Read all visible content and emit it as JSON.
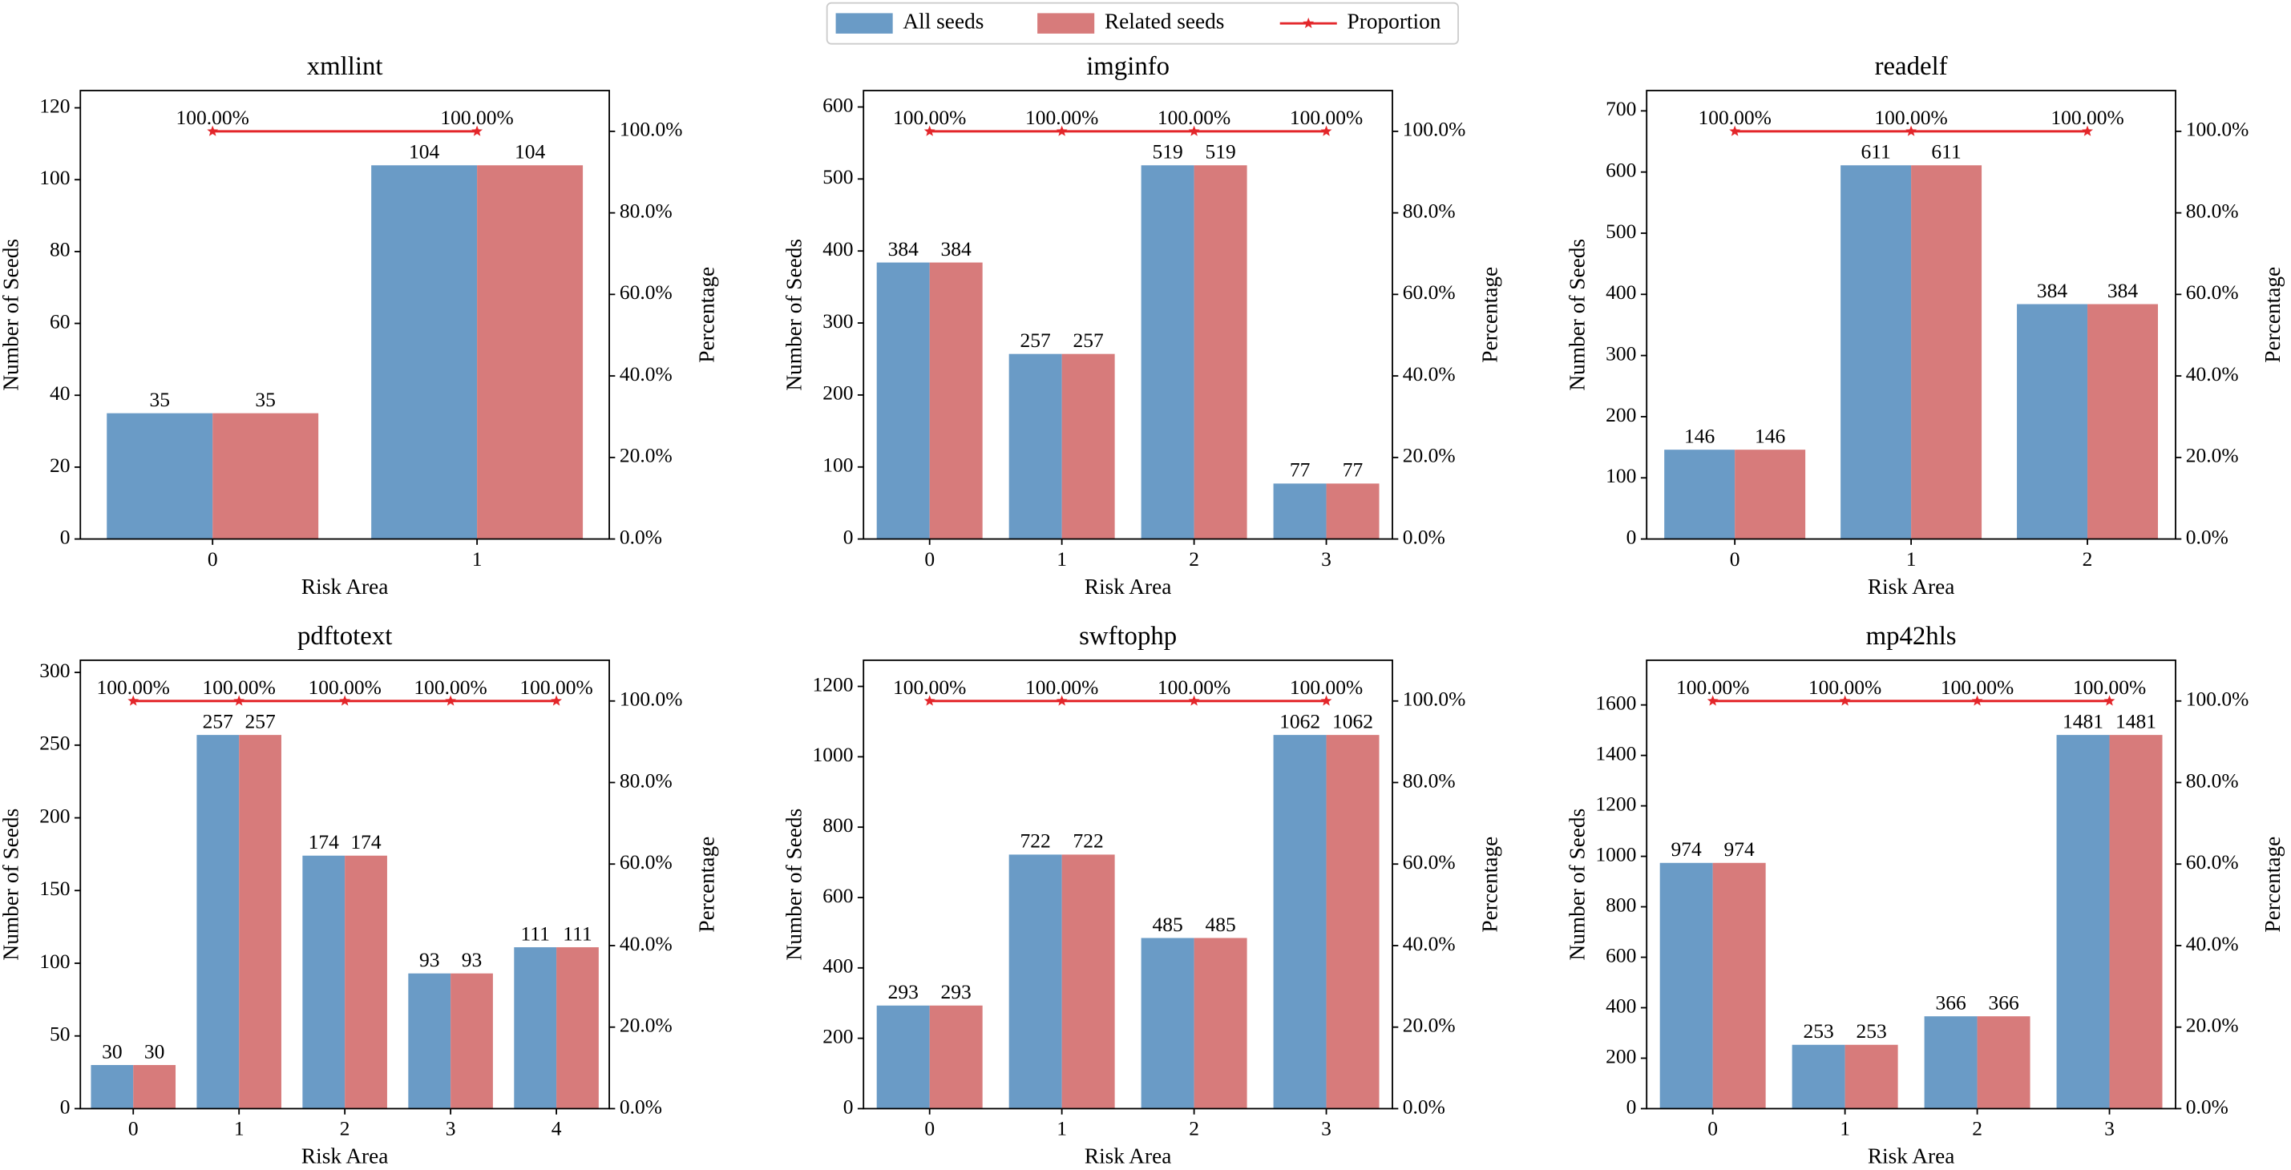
{
  "chart_data": [
    {
      "type": "bar",
      "title": "xmllint",
      "x_label": "Risk Area",
      "y_label": "Number of Seeds",
      "y2_label": "Percentage",
      "legend": "upper center",
      "categories": [
        "0",
        "1"
      ],
      "series": [
        {
          "name": "All seeds",
          "color": "#6a9bc6",
          "values": [
            35,
            104
          ]
        },
        {
          "name": "Related seeds",
          "color": "#d77b7b",
          "values": [
            35,
            104
          ]
        },
        {
          "name": "Proportion",
          "color": "#e3262a",
          "type": "line",
          "axis": "y2",
          "values": [
            100,
            100
          ],
          "value_labels": [
            "100.00%",
            "100.00%"
          ]
        }
      ],
      "ylim": [
        0,
        124.8
      ],
      "yticks": [
        0,
        20,
        40,
        60,
        80,
        100,
        120
      ],
      "y2lim": [
        0,
        110
      ],
      "y2ticks": [
        {
          "value": 0,
          "label": "0.0%"
        },
        {
          "value": 20,
          "label": "20.0%"
        },
        {
          "value": 40,
          "label": "40.0%"
        },
        {
          "value": 60,
          "label": "60.0%"
        },
        {
          "value": 80,
          "label": "80.0%"
        },
        {
          "value": 100,
          "label": "100.0%"
        }
      ]
    },
    {
      "type": "bar",
      "title": "imginfo",
      "x_label": "Risk Area",
      "y_label": "Number of Seeds",
      "y2_label": "Percentage",
      "categories": [
        "0",
        "1",
        "2",
        "3"
      ],
      "series": [
        {
          "name": "All seeds",
          "color": "#6a9bc6",
          "values": [
            384,
            257,
            519,
            77
          ]
        },
        {
          "name": "Related seeds",
          "color": "#d77b7b",
          "values": [
            384,
            257,
            519,
            77
          ]
        },
        {
          "name": "Proportion",
          "color": "#e3262a",
          "type": "line",
          "axis": "y2",
          "values": [
            100,
            100,
            100,
            100
          ],
          "value_labels": [
            "100.00%",
            "100.00%",
            "100.00%",
            "100.00%"
          ]
        }
      ],
      "ylim": [
        0,
        622.8
      ],
      "yticks": [
        0,
        100,
        200,
        300,
        400,
        500,
        600
      ],
      "y2lim": [
        0,
        110
      ],
      "y2ticks": [
        {
          "value": 0,
          "label": "0.0%"
        },
        {
          "value": 20,
          "label": "20.0%"
        },
        {
          "value": 40,
          "label": "40.0%"
        },
        {
          "value": 60,
          "label": "60.0%"
        },
        {
          "value": 80,
          "label": "80.0%"
        },
        {
          "value": 100,
          "label": "100.0%"
        }
      ]
    },
    {
      "type": "bar",
      "title": "readelf",
      "x_label": "Risk Area",
      "y_label": "Number of Seeds",
      "y2_label": "Percentage",
      "categories": [
        "0",
        "1",
        "2"
      ],
      "series": [
        {
          "name": "All seeds",
          "color": "#6a9bc6",
          "values": [
            146,
            611,
            384
          ]
        },
        {
          "name": "Related seeds",
          "color": "#d77b7b",
          "values": [
            146,
            611,
            384
          ]
        },
        {
          "name": "Proportion",
          "color": "#e3262a",
          "type": "line",
          "axis": "y2",
          "values": [
            100,
            100,
            100
          ],
          "value_labels": [
            "100.00%",
            "100.00%",
            "100.00%"
          ]
        }
      ],
      "ylim": [
        0,
        733.2
      ],
      "yticks": [
        0,
        100,
        200,
        300,
        400,
        500,
        600,
        700
      ],
      "y2lim": [
        0,
        110
      ],
      "y2ticks": [
        {
          "value": 0,
          "label": "0.0%"
        },
        {
          "value": 20,
          "label": "20.0%"
        },
        {
          "value": 40,
          "label": "40.0%"
        },
        {
          "value": 60,
          "label": "60.0%"
        },
        {
          "value": 80,
          "label": "80.0%"
        },
        {
          "value": 100,
          "label": "100.0%"
        }
      ]
    },
    {
      "type": "bar",
      "title": "pdftotext",
      "x_label": "Risk Area",
      "y_label": "Number of Seeds",
      "y2_label": "Percentage",
      "categories": [
        "0",
        "1",
        "2",
        "3",
        "4"
      ],
      "series": [
        {
          "name": "All seeds",
          "color": "#6a9bc6",
          "values": [
            30,
            257,
            174,
            93,
            111
          ]
        },
        {
          "name": "Related seeds",
          "color": "#d77b7b",
          "values": [
            30,
            257,
            174,
            93,
            111
          ]
        },
        {
          "name": "Proportion",
          "color": "#e3262a",
          "type": "line",
          "axis": "y2",
          "values": [
            100,
            100,
            100,
            100,
            100
          ],
          "value_labels": [
            "100.00%",
            "100.00%",
            "100.00%",
            "100.00%",
            "100.00%"
          ]
        }
      ],
      "ylim": [
        0,
        308.4
      ],
      "yticks": [
        0,
        50,
        100,
        150,
        200,
        250,
        300
      ],
      "y2lim": [
        0,
        110
      ],
      "y2ticks": [
        {
          "value": 0,
          "label": "0.0%"
        },
        {
          "value": 20,
          "label": "20.0%"
        },
        {
          "value": 40,
          "label": "40.0%"
        },
        {
          "value": 60,
          "label": "60.0%"
        },
        {
          "value": 80,
          "label": "80.0%"
        },
        {
          "value": 100,
          "label": "100.0%"
        }
      ]
    },
    {
      "type": "bar",
      "title": "swftophp",
      "x_label": "Risk Area",
      "y_label": "Number of Seeds",
      "y2_label": "Percentage",
      "categories": [
        "0",
        "1",
        "2",
        "3"
      ],
      "series": [
        {
          "name": "All seeds",
          "color": "#6a9bc6",
          "values": [
            293,
            722,
            485,
            1062
          ]
        },
        {
          "name": "Related seeds",
          "color": "#d77b7b",
          "values": [
            293,
            722,
            485,
            1062
          ]
        },
        {
          "name": "Proportion",
          "color": "#e3262a",
          "type": "line",
          "axis": "y2",
          "values": [
            100,
            100,
            100,
            100
          ],
          "value_labels": [
            "100.00%",
            "100.00%",
            "100.00%",
            "100.00%"
          ]
        }
      ],
      "ylim": [
        0,
        1274.4
      ],
      "yticks": [
        0,
        200,
        400,
        600,
        800,
        1000,
        1200
      ],
      "y2lim": [
        0,
        110
      ],
      "y2ticks": [
        {
          "value": 0,
          "label": "0.0%"
        },
        {
          "value": 20,
          "label": "20.0%"
        },
        {
          "value": 40,
          "label": "40.0%"
        },
        {
          "value": 60,
          "label": "60.0%"
        },
        {
          "value": 80,
          "label": "80.0%"
        },
        {
          "value": 100,
          "label": "100.0%"
        }
      ]
    },
    {
      "type": "bar",
      "title": "mp42hls",
      "x_label": "Risk Area",
      "y_label": "Number of Seeds",
      "y2_label": "Percentage",
      "categories": [
        "0",
        "1",
        "2",
        "3"
      ],
      "series": [
        {
          "name": "All seeds",
          "color": "#6a9bc6",
          "values": [
            974,
            253,
            366,
            1481
          ]
        },
        {
          "name": "Related seeds",
          "color": "#d77b7b",
          "values": [
            974,
            253,
            366,
            1481
          ]
        },
        {
          "name": "Proportion",
          "color": "#e3262a",
          "type": "line",
          "axis": "y2",
          "values": [
            100,
            100,
            100,
            100
          ],
          "value_labels": [
            "100.00%",
            "100.00%",
            "100.00%",
            "100.00%"
          ]
        }
      ],
      "ylim": [
        0,
        1777.2
      ],
      "yticks": [
        0,
        200,
        400,
        600,
        800,
        1000,
        1200,
        1400,
        1600
      ],
      "y2lim": [
        0,
        110
      ],
      "y2ticks": [
        {
          "value": 0,
          "label": "0.0%"
        },
        {
          "value": 20,
          "label": "20.0%"
        },
        {
          "value": 40,
          "label": "40.0%"
        },
        {
          "value": 60,
          "label": "60.0%"
        },
        {
          "value": 80,
          "label": "80.0%"
        },
        {
          "value": 100,
          "label": "100.0%"
        }
      ]
    }
  ]
}
